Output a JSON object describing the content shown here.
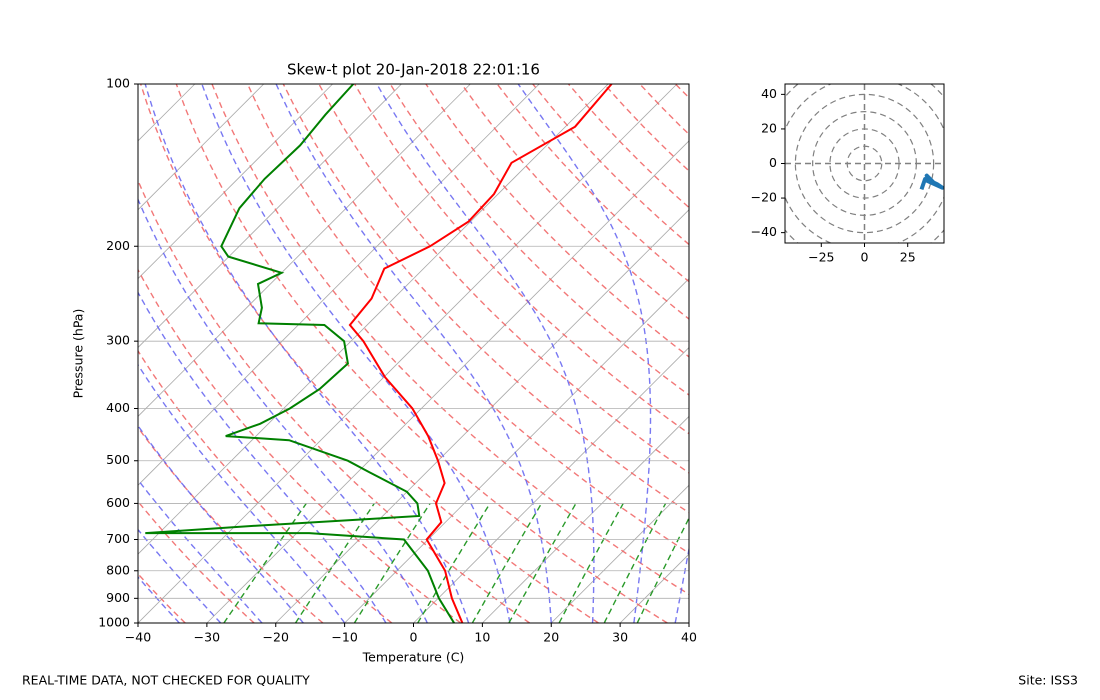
{
  "chart_data": [
    {
      "type": "skewt",
      "title": "Skew-t plot 20-Jan-2018 22:01:16",
      "xlabel": "Temperature (C)",
      "ylabel": "Pressure (hPa)",
      "xlim": [
        -40,
        40
      ],
      "ylim": [
        1000,
        100
      ],
      "yscale": "log",
      "grid": true,
      "xticks": [
        {
          "value": -40,
          "label": "−40"
        },
        {
          "value": -30,
          "label": "−30"
        },
        {
          "value": -20,
          "label": "−20"
        },
        {
          "value": -10,
          "label": "−10"
        },
        0,
        10,
        20,
        30,
        40
      ],
      "yticks": [
        100,
        200,
        300,
        400,
        500,
        600,
        700,
        800,
        900,
        1000
      ],
      "series": [
        {
          "color": "#ff0000",
          "pressure": [
            1000,
            900,
            800,
            700,
            650,
            600,
            550,
            500,
            450,
            400,
            350,
            300,
            280,
            250,
            220,
            200,
            180,
            160,
            140,
            120,
            100
          ],
          "temperature": [
            7.1,
            2.0,
            -3.0,
            -10.2,
            -10.6,
            -14.1,
            -15.8,
            -20.0,
            -25.0,
            -31.3,
            -39.8,
            -48.2,
            -52.5,
            -53.2,
            -55.7,
            -52.3,
            -50.3,
            -50.6,
            -52.6,
            -48.6,
            -49.5
          ]
        },
        {
          "color": "#008000",
          "pressure": [
            1000,
            900,
            800,
            700,
            681,
            681,
            660,
            633,
            600,
            571,
            525,
            500,
            458,
            450,
            427,
            400,
            368,
            330,
            300,
            280,
            278,
            260,
            235,
            224,
            209,
            200,
            170,
            150,
            130,
            114,
            100
          ],
          "temperature": [
            5.9,
            0.1,
            -5.5,
            -13.5,
            -28.2,
            -52.0,
            -37.0,
            -14.7,
            -16.8,
            -20.0,
            -28.3,
            -33.1,
            -44.6,
            -54.4,
            -51.2,
            -49.1,
            -47.6,
            -47.2,
            -51.0,
            -56.2,
            -66.0,
            -67.8,
            -71.8,
            -70.0,
            -80.1,
            -82.6,
            -85.5,
            -86.1,
            -85.8,
            -86.6,
            -87.0
          ]
        }
      ]
    },
    {
      "type": "hodograph",
      "xlim": [
        -46,
        46
      ],
      "ylim": [
        -46,
        46
      ],
      "xticks": [
        {
          "value": -25,
          "label": "−25"
        },
        0,
        25
      ],
      "yticks": [
        {
          "value": -40,
          "label": "−40"
        },
        {
          "value": -20,
          "label": "−20"
        },
        0,
        20,
        40
      ],
      "series": [
        {
          "color": "#1f77b4",
          "u": [
            33,
            35,
            38,
            36,
            40,
            42,
            45,
            34
          ],
          "v": [
            -15,
            -9,
            -10,
            -7,
            -11,
            -12,
            -14,
            -9
          ]
        }
      ]
    }
  ],
  "footer": {
    "note": "REAL-TIME DATA, NOT CHECKED FOR QUALITY",
    "site": "Site: ISS3"
  }
}
